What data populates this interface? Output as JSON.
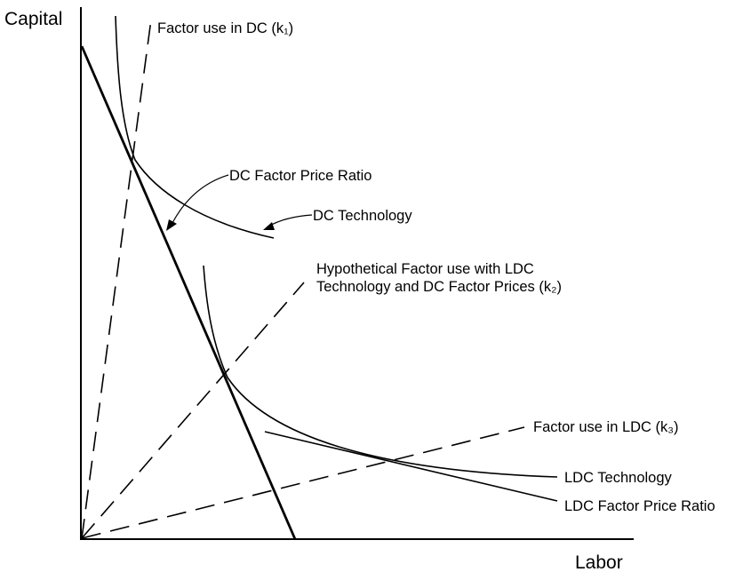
{
  "axes": {
    "y_label": "Capital",
    "x_label": "Labor"
  },
  "labels": {
    "dc_factor_use": "Factor use in DC (k₁)",
    "dc_price_ratio": "DC Factor Price Ratio",
    "dc_technology": "DC Technology",
    "hypothetical_line1": "Hypothetical Factor use with LDC",
    "hypothetical_line2": "Technology and DC Factor Prices (k₂)",
    "ldc_factor_use": "Factor use in LDC (k₃)",
    "ldc_technology": "LDC Technology",
    "ldc_price_ratio": "LDC Factor Price Ratio"
  }
}
